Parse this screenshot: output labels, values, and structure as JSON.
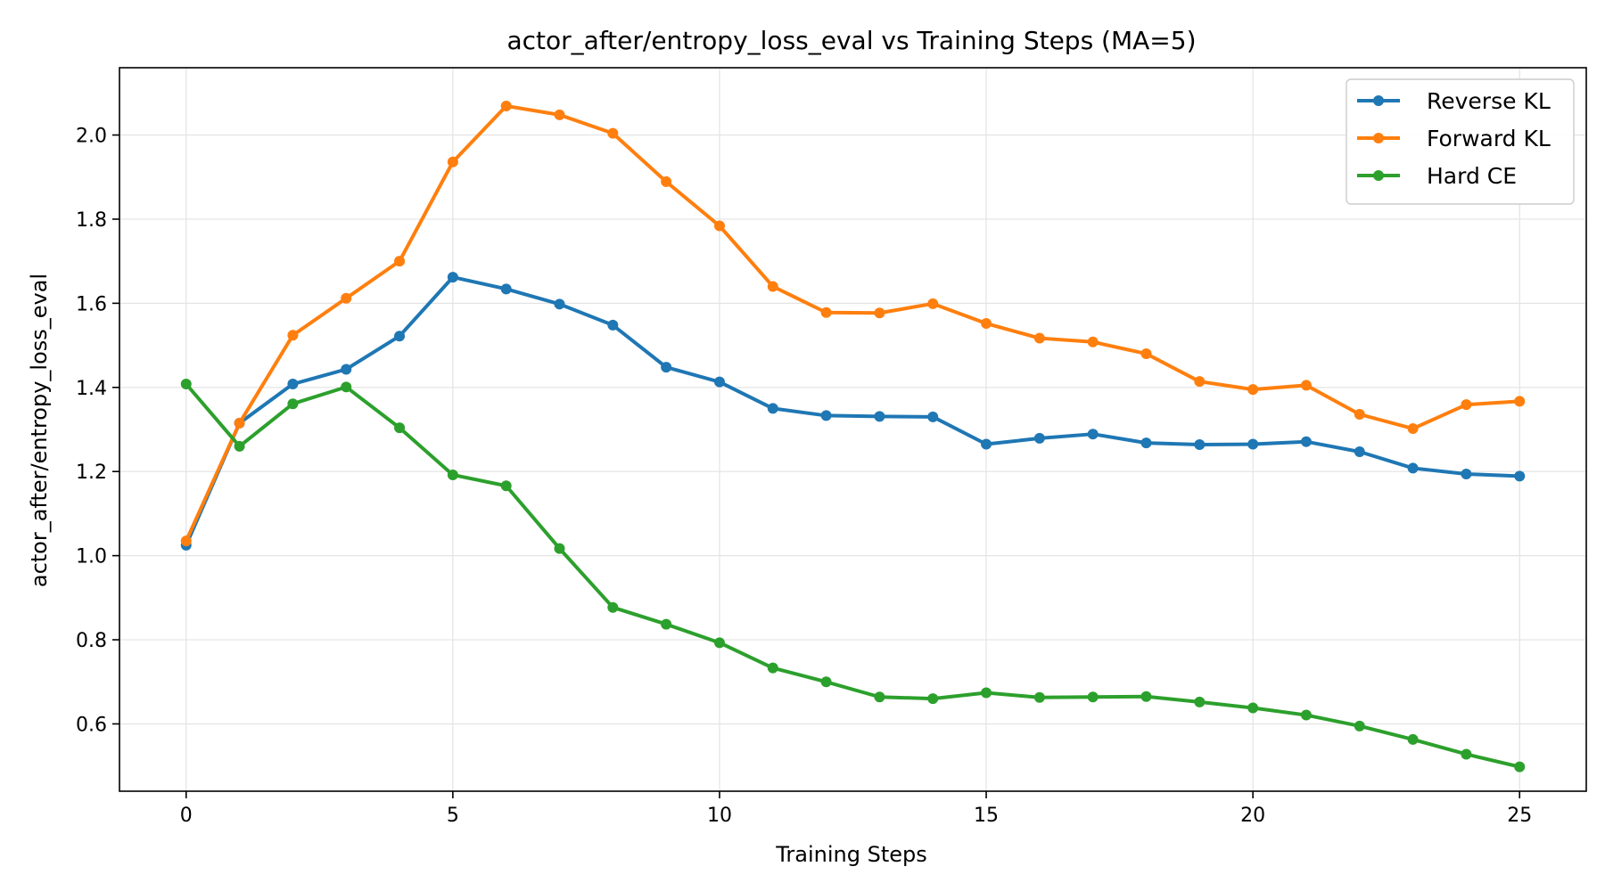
{
  "chart_data": {
    "type": "line",
    "title": "actor_after/entropy_loss_eval vs Training Steps  (MA=5)",
    "xlabel": "Training Steps",
    "ylabel": "actor_after/entropy_loss_eval",
    "xlim": [
      -1.25,
      26.25
    ],
    "ylim": [
      0.44,
      2.16
    ],
    "xticks": [
      0,
      5,
      10,
      15,
      20,
      25
    ],
    "yticks": [
      0.6,
      0.8,
      1.0,
      1.2,
      1.4,
      1.6,
      1.8,
      2.0
    ],
    "ytick_labels": [
      "0.6",
      "0.8",
      "1.0",
      "1.2",
      "1.4",
      "1.6",
      "1.8",
      "2.0"
    ],
    "grid": true,
    "legend_position": "top-right",
    "x": [
      0,
      1,
      2,
      3,
      4,
      5,
      6,
      7,
      8,
      9,
      10,
      11,
      12,
      13,
      14,
      15,
      16,
      17,
      18,
      19,
      20,
      21,
      22,
      23,
      24,
      25
    ],
    "series": [
      {
        "name": "Reverse KL",
        "color": "#1f77b4",
        "values": [
          1.025,
          1.315,
          1.408,
          1.443,
          1.522,
          1.662,
          1.634,
          1.598,
          1.548,
          1.448,
          1.413,
          1.35,
          1.333,
          1.331,
          1.33,
          1.265,
          1.279,
          1.289,
          1.268,
          1.264,
          1.265,
          1.271,
          1.247,
          1.208,
          1.194,
          1.189
        ]
      },
      {
        "name": "Forward KL",
        "color": "#ff7f0e",
        "values": [
          1.035,
          1.315,
          1.524,
          1.612,
          1.7,
          1.936,
          2.069,
          2.048,
          2.004,
          1.889,
          1.784,
          1.64,
          1.578,
          1.577,
          1.599,
          1.552,
          1.517,
          1.508,
          1.48,
          1.414,
          1.395,
          1.405,
          1.336,
          1.302,
          1.359,
          1.367
        ]
      },
      {
        "name": "Hard CE",
        "color": "#2ca02c",
        "values": [
          1.408,
          1.26,
          1.361,
          1.401,
          1.304,
          1.192,
          1.166,
          1.017,
          0.877,
          0.837,
          0.793,
          0.733,
          0.7,
          0.664,
          0.66,
          0.674,
          0.663,
          0.664,
          0.665,
          0.652,
          0.638,
          0.621,
          0.595,
          0.563,
          0.528,
          0.498
        ]
      }
    ]
  }
}
